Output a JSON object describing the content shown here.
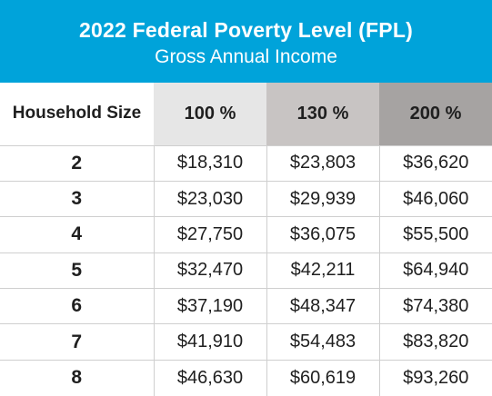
{
  "header": {
    "title": "2022 Federal Poverty Level (FPL)",
    "subtitle": "Gross Annual Income",
    "background_color": "#00a3da"
  },
  "table": {
    "columns": [
      {
        "label": "Household Size",
        "color": "#ffffff"
      },
      {
        "label": "100 %",
        "color": "#e6e6e6"
      },
      {
        "label": "130 %",
        "color": "#c8c4c3"
      },
      {
        "label": "200 %",
        "color": "#a6a3a2"
      }
    ],
    "rows": [
      [
        "2",
        "$18,310",
        "$23,803",
        "$36,620"
      ],
      [
        "3",
        "$23,030",
        "$29,939",
        "$46,060"
      ],
      [
        "4",
        "$27,750",
        "$36,075",
        "$55,500"
      ],
      [
        "5",
        "$32,470",
        "$42,211",
        "$64,940"
      ],
      [
        "6",
        "$37,190",
        "$48,347",
        "$74,380"
      ],
      [
        "7",
        "$41,910",
        "$54,483",
        "$83,820"
      ],
      [
        "8",
        "$46,630",
        "$60,619",
        "$93,260"
      ]
    ]
  }
}
